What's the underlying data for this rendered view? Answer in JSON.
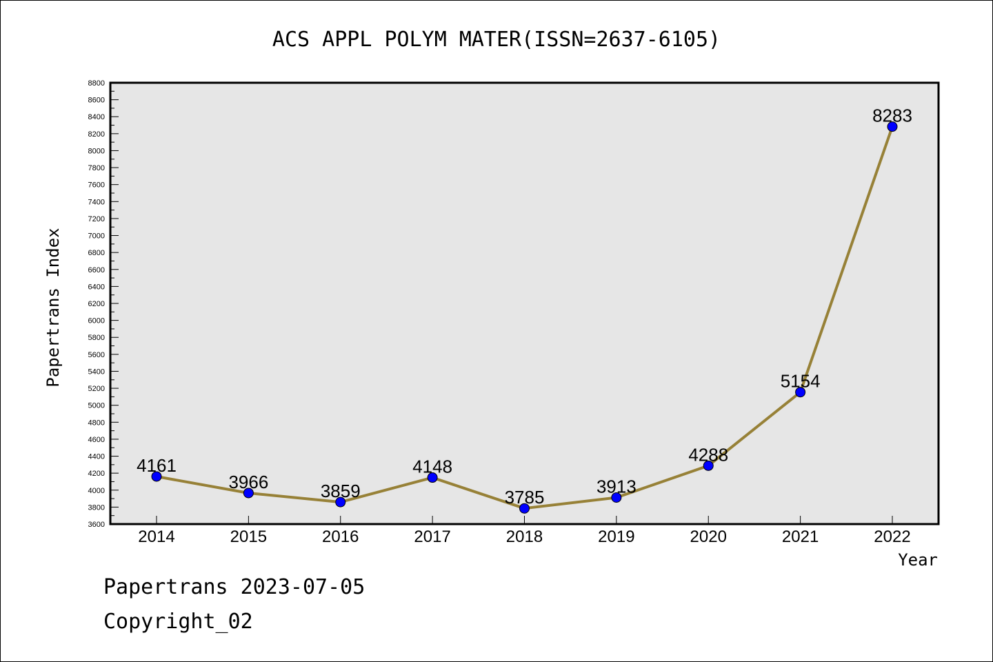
{
  "chart_data": {
    "type": "line",
    "title": "ACS APPL POLYM MATER(ISSN=2637-6105)",
    "xlabel": "Year",
    "ylabel": "Papertrans Index",
    "categories": [
      "2014",
      "2015",
      "2016",
      "2017",
      "2018",
      "2019",
      "2020",
      "2021",
      "2022"
    ],
    "series": [
      {
        "values": [
          4161,
          3966,
          3859,
          4148,
          3785,
          3913,
          4288,
          5154,
          8283
        ]
      }
    ],
    "data_labels": [
      "4161",
      "3966",
      "3859",
      "4148",
      "3785",
      "3913",
      "4288",
      "5154",
      "8283"
    ],
    "ylim": [
      3600,
      8800
    ],
    "yticks": [
      "3600",
      "3800",
      "4000",
      "4200",
      "4400",
      "4600",
      "4800",
      "5000",
      "5200",
      "5400",
      "5600",
      "5800",
      "6000",
      "6200",
      "6400",
      "6600",
      "6800",
      "7000",
      "7200",
      "7400",
      "7600",
      "7800",
      "8000",
      "8200",
      "8400",
      "8600",
      "8800"
    ],
    "grid": false,
    "colors": {
      "line": "#978137",
      "marker": "#0000ff",
      "plot_background": "#e6e6e6"
    }
  },
  "footer": {
    "line1": "Papertrans 2023-07-05",
    "line2": "Copyright_02"
  }
}
